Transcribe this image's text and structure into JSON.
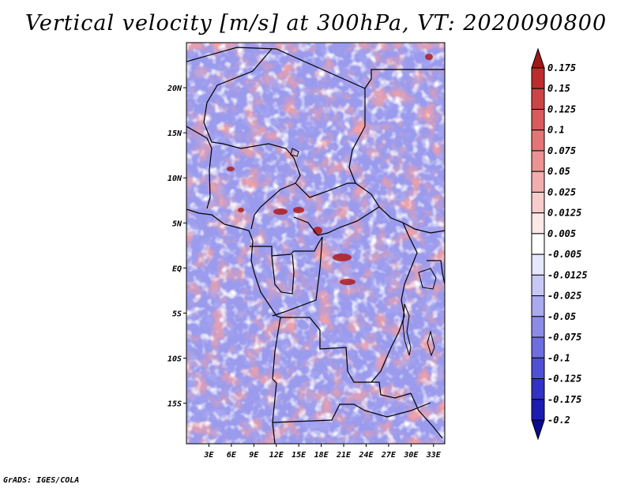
{
  "title": "Vertical velocity [m/s] at 300hPa, VT: 2020090800",
  "credit": "GrADS: IGES/COLA",
  "map": {
    "lat_labels": [
      "20N",
      "15N",
      "10N",
      "5N",
      "EQ",
      "5S",
      "10S",
      "15S"
    ],
    "lon_labels": [
      "3E",
      "6E",
      "9E",
      "12E",
      "15E",
      "18E",
      "21E",
      "24E",
      "27E",
      "30E",
      "33E"
    ],
    "lat_values": [
      20,
      15,
      10,
      5,
      0,
      -5,
      -10,
      -15
    ],
    "lon_values": [
      3,
      6,
      9,
      12,
      15,
      18,
      21,
      24,
      27,
      30,
      33
    ],
    "extent": {
      "lon_min": 0,
      "lon_max": 34.5,
      "lat_min": -19.5,
      "lat_max": 25
    }
  },
  "colorbar": {
    "labels": [
      "0.175",
      "0.15",
      "0.125",
      "0.1",
      "0.075",
      "0.05",
      "0.025",
      "0.0125",
      "0.005",
      "-0.005",
      "-0.0125",
      "-0.025",
      "-0.05",
      "-0.075",
      "-0.1",
      "-0.125",
      "-0.175",
      "-0.2"
    ],
    "colors": [
      "#a01818",
      "#bd2c2c",
      "#cc4545",
      "#d85a5a",
      "#e27676",
      "#eb9292",
      "#f2aeae",
      "#f8cccc",
      "#fde8e8",
      "#ffffff",
      "#e6e6fc",
      "#c8c8f6",
      "#aaaaf0",
      "#8c8ce8",
      "#6e6ee0",
      "#5050d4",
      "#3232c4",
      "#1c1cb0",
      "#0a0a90"
    ]
  }
}
